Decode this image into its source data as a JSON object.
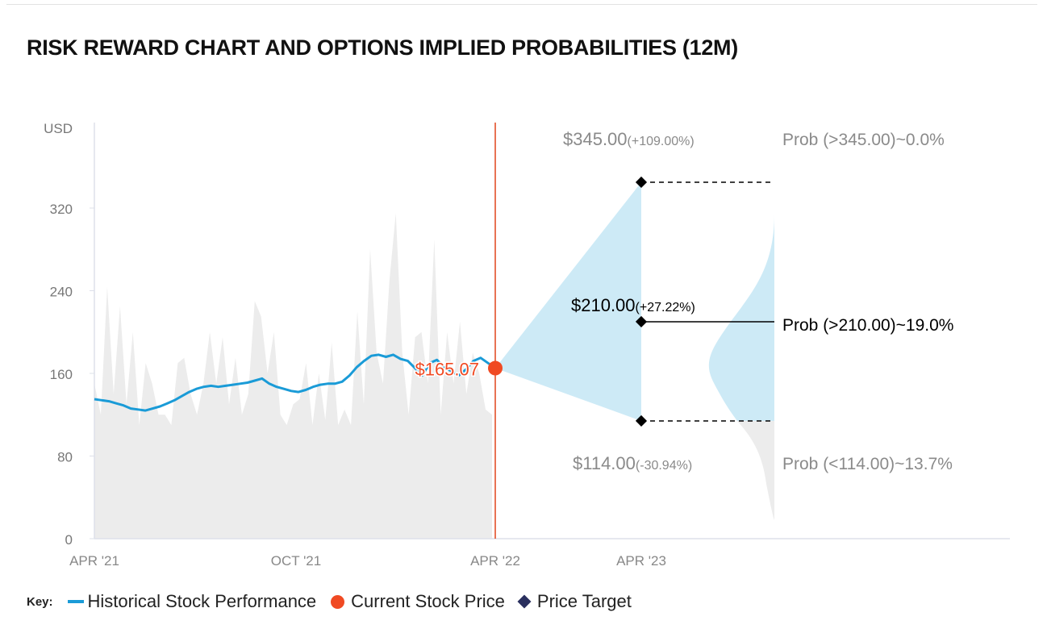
{
  "title": "RISK REWARD CHART AND OPTIONS IMPLIED PROBABILITIES (12M)",
  "chart_data": {
    "type": "line",
    "title": "RISK REWARD CHART AND OPTIONS IMPLIED PROBABILITIES (12M)",
    "ylabel": "USD",
    "ylim": [
      0,
      400
    ],
    "yticks": [
      "0",
      "80",
      "160",
      "240",
      "320"
    ],
    "ytick_values": [
      0,
      80,
      160,
      240,
      320
    ],
    "xticks": [
      "APR '21",
      "OCT '21",
      "APR '22",
      "APR '23"
    ],
    "grid": false,
    "historical": {
      "name": "Historical Stock Performance",
      "color": "#1a9bd7",
      "values": [
        135,
        134,
        133,
        131,
        129,
        126,
        125,
        124,
        126,
        128,
        131,
        134,
        138,
        142,
        145,
        147,
        148,
        147,
        148,
        149,
        150,
        151,
        153,
        155,
        150,
        147,
        145,
        143,
        142,
        144,
        147,
        149,
        150,
        150,
        152,
        158,
        166,
        172,
        177,
        178,
        176,
        178,
        174,
        172,
        165,
        158,
        170,
        173,
        166,
        162,
        158,
        164,
        172,
        175,
        170,
        165.07
      ]
    },
    "background_series": {
      "color": "#ececec",
      "values": [
        150,
        120,
        244,
        140,
        225,
        130,
        200,
        110,
        170,
        150,
        120,
        120,
        110,
        170,
        175,
        140,
        120,
        150,
        200,
        150,
        195,
        130,
        175,
        120,
        140,
        230,
        215,
        160,
        200,
        120,
        110,
        130,
        135,
        170,
        110,
        160,
        115,
        190,
        110,
        125,
        110,
        220,
        130,
        280,
        180,
        150,
        250,
        315,
        180,
        120,
        195,
        200,
        150,
        290,
        120,
        200,
        150,
        210,
        140,
        180,
        160,
        125,
        120
      ]
    },
    "current_price": {
      "name": "Current Stock Price",
      "value": 165.07,
      "label": "$165.07",
      "color": "#f04a23"
    },
    "price_targets": [
      {
        "value": 345.0,
        "label": "$345.00",
        "change": "(+109.00%)",
        "prob_label": "Prob (>345.00)~0.0%",
        "style": "dashed",
        "emphasis": false
      },
      {
        "value": 210.0,
        "label": "$210.00",
        "change": "(+27.22%)",
        "prob_label": "Prob (>210.00)~19.0%",
        "style": "solid",
        "emphasis": true
      },
      {
        "value": 114.0,
        "label": "$114.00",
        "change": "(-30.94%)",
        "prob_label": "Prob (<114.00)~13.7%",
        "style": "dashed",
        "emphasis": false
      }
    ],
    "price_target_name": "Price Target",
    "cone_color": "#cdeaf6",
    "divider_color": "#e0451c"
  },
  "legend": {
    "key_label": "Key:",
    "items": [
      "Historical Stock Performance",
      "Current Stock Price",
      "Price Target"
    ]
  }
}
